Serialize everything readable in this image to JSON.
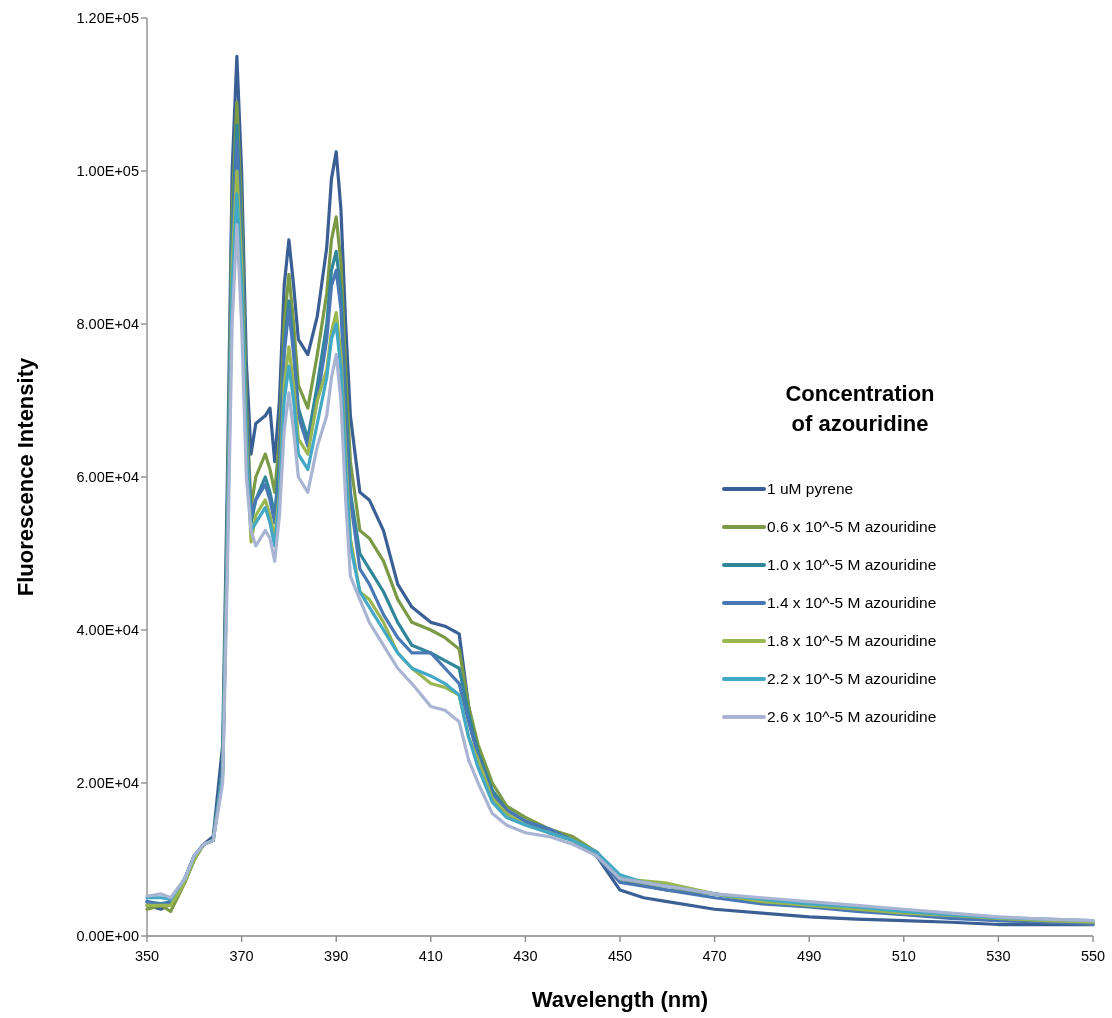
{
  "chart_data": {
    "type": "line",
    "xlabel": "Wavelength (nm)",
    "ylabel": "Fluorescence Intensity",
    "legend_title": "Concentration of azouridine",
    "legend": "right",
    "grid": false,
    "marker": "none",
    "line_style": "solid",
    "xlim": [
      350,
      550
    ],
    "xticks": [
      350,
      370,
      390,
      410,
      430,
      450,
      470,
      490,
      510,
      530,
      550
    ],
    "ylim": [
      0,
      120000
    ],
    "yticks": [
      {
        "value": 0,
        "label": "0.00E+00"
      },
      {
        "value": 20000,
        "label": "2.00E+04"
      },
      {
        "value": 40000,
        "label": "4.00E+04"
      },
      {
        "value": 60000,
        "label": "6.00E+04"
      },
      {
        "value": 80000,
        "label": "8.00E+04"
      },
      {
        "value": 100000,
        "label": "1.00E+05"
      },
      {
        "value": 120000,
        "label": "1.20E+05"
      }
    ],
    "x": [
      350,
      353,
      355,
      358,
      360,
      362,
      364,
      366,
      367,
      368,
      369,
      370,
      371,
      372,
      373,
      375,
      376,
      377,
      378,
      379,
      380,
      381,
      382,
      384,
      386,
      388,
      389,
      390,
      391,
      392,
      393,
      395,
      397,
      400,
      403,
      406,
      410,
      413,
      416,
      418,
      420,
      423,
      426,
      430,
      435,
      440,
      445,
      450,
      455,
      460,
      470,
      480,
      490,
      500,
      510,
      520,
      530,
      540,
      550
    ],
    "series": [
      {
        "name": "1 uM pyrene",
        "color": "#3a5f94",
        "values": [
          4000,
          3500,
          4200,
          7000,
          10000,
          12000,
          13000,
          25000,
          60000,
          100000,
          115000,
          100000,
          75000,
          63000,
          67000,
          68000,
          69000,
          62000,
          70000,
          85000,
          91000,
          85000,
          78000,
          76000,
          81000,
          90000,
          99000,
          102500,
          95000,
          80000,
          68000,
          58000,
          57000,
          53000,
          46000,
          43000,
          41000,
          40500,
          39500,
          30000,
          24000,
          19000,
          16500,
          15000,
          13500,
          12500,
          10500,
          6000,
          5000,
          4500,
          3500,
          3000,
          2500,
          2200,
          2000,
          1800,
          1500,
          1500,
          1500
        ]
      },
      {
        "name": "0.6 x 10^-5 M azouridine",
        "color": "#7a9a45",
        "values": [
          3500,
          4000,
          3200,
          7000,
          10000,
          12000,
          12500,
          22000,
          55000,
          95000,
          109000,
          95000,
          70000,
          56000,
          60000,
          63000,
          61000,
          58000,
          65000,
          80000,
          86500,
          80000,
          72000,
          69000,
          76000,
          84000,
          91000,
          94000,
          88000,
          74000,
          62000,
          53000,
          52000,
          49000,
          44000,
          41000,
          40000,
          39000,
          37500,
          30000,
          25000,
          20000,
          17000,
          15500,
          14000,
          13000,
          11000,
          7500,
          6600,
          6000,
          5500,
          4500,
          4000,
          3500,
          3000,
          2500,
          2000,
          2000,
          1500
        ]
      },
      {
        "name": "1.0 x 10^-5 M azouridine",
        "color": "#31869a",
        "values": [
          4500,
          4200,
          4500,
          7500,
          10500,
          12000,
          12500,
          22000,
          54000,
          92000,
          106000,
          92000,
          68000,
          54000,
          57000,
          60000,
          58000,
          55000,
          62000,
          77000,
          83000,
          77000,
          69000,
          65000,
          72000,
          80000,
          87000,
          89500,
          84000,
          70000,
          58000,
          50000,
          48000,
          45000,
          41000,
          38000,
          37000,
          36000,
          35000,
          29000,
          24000,
          19000,
          16500,
          15000,
          14000,
          12500,
          11000,
          7500,
          7000,
          6500,
          5500,
          4500,
          4000,
          3500,
          3000,
          2500,
          2200,
          2000,
          1800
        ]
      },
      {
        "name": "1.4 x 10^-5 M azouridine",
        "color": "#4a78b5",
        "values": [
          4500,
          4000,
          4500,
          7500,
          10500,
          12000,
          12500,
          22000,
          53000,
          90000,
          104000,
          90000,
          67000,
          55000,
          57000,
          59000,
          57000,
          54000,
          61000,
          76000,
          82000,
          76000,
          68000,
          64000,
          70000,
          78000,
          85000,
          87000,
          82000,
          68000,
          57000,
          48000,
          46000,
          42000,
          39000,
          37000,
          37000,
          35000,
          33000,
          28000,
          23500,
          18500,
          16500,
          15000,
          14000,
          12500,
          10500,
          7000,
          6500,
          6000,
          5000,
          4200,
          3800,
          3200,
          2800,
          2300,
          2000,
          1800,
          1500
        ]
      },
      {
        "name": "1.8 x 10^-5 M azouridine",
        "color": "#9ab74f",
        "values": [
          4000,
          4000,
          4000,
          7000,
          10000,
          12000,
          12500,
          21000,
          52000,
          88000,
          100000,
          88000,
          65000,
          51500,
          55000,
          57000,
          55000,
          52000,
          58000,
          72000,
          77000,
          72000,
          65000,
          63000,
          70000,
          74000,
          79000,
          81500,
          76000,
          63000,
          52000,
          45000,
          44000,
          41000,
          37000,
          35000,
          33000,
          32500,
          31500,
          26000,
          23000,
          18000,
          16000,
          14500,
          13500,
          12500,
          11000,
          7500,
          7200,
          6900,
          5500,
          4500,
          4000,
          3500,
          3000,
          2700,
          2300,
          2000,
          1800
        ]
      },
      {
        "name": "2.2 x 10^-5 M azouridine",
        "color": "#43a8c6",
        "values": [
          5000,
          5000,
          4800,
          7500,
          10500,
          12000,
          12500,
          21000,
          51000,
          85000,
          97000,
          85000,
          63000,
          53000,
          54000,
          56000,
          54000,
          51000,
          57000,
          70000,
          74500,
          70000,
          63000,
          61000,
          67000,
          73000,
          78000,
          80000,
          74000,
          61000,
          51000,
          45000,
          43000,
          40000,
          37000,
          35000,
          34000,
          33000,
          31500,
          26000,
          22000,
          17500,
          15500,
          14500,
          13500,
          12500,
          11000,
          8000,
          7000,
          6500,
          5500,
          4800,
          4200,
          3800,
          3200,
          2800,
          2400,
          2200,
          2000
        ]
      },
      {
        "name": "2.6 x 10^-5 M azouridine",
        "color": "#a9b4d3",
        "values": [
          5200,
          5500,
          5000,
          7500,
          10500,
          12000,
          12500,
          20000,
          48000,
          80000,
          93000,
          80000,
          60000,
          53000,
          51000,
          53000,
          52000,
          49000,
          55000,
          66000,
          71000,
          66000,
          60000,
          58000,
          64000,
          68000,
          73000,
          76000,
          70000,
          57000,
          47000,
          44000,
          41000,
          38000,
          35000,
          33000,
          30000,
          29500,
          28000,
          23000,
          20000,
          16000,
          14500,
          13500,
          13000,
          12000,
          10500,
          7500,
          7000,
          6500,
          5500,
          5000,
          4500,
          4000,
          3500,
          3000,
          2500,
          2200,
          2000
        ]
      }
    ]
  }
}
